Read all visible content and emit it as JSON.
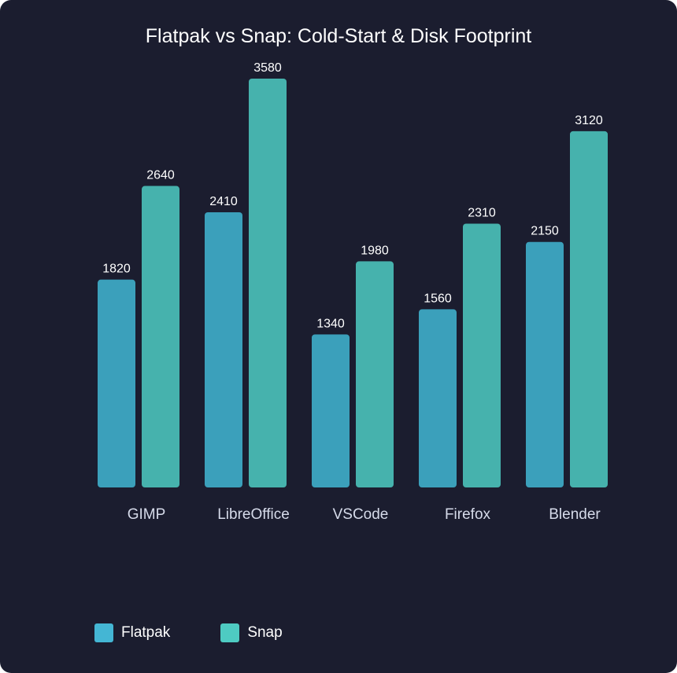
{
  "chart_data": {
    "type": "bar",
    "title": "Flatpak vs Snap: Cold-Start & Disk Footprint",
    "categories": [
      "GIMP",
      "LibreOffice",
      "VSCode",
      "Firefox",
      "Blender"
    ],
    "series": [
      {
        "name": "Flatpak",
        "values": [
          1820,
          2410,
          1340,
          1560,
          2150
        ],
        "color": "#3ba0bb"
      },
      {
        "name": "Snap",
        "values": [
          2640,
          3580,
          1980,
          2310,
          3120
        ],
        "color": "#46b2ad"
      }
    ],
    "legend_colors": [
      "#44b6d4",
      "#4ecbc2"
    ],
    "ylim": [
      0,
      3580
    ],
    "grid": false,
    "legend_position": "bottom-left"
  }
}
